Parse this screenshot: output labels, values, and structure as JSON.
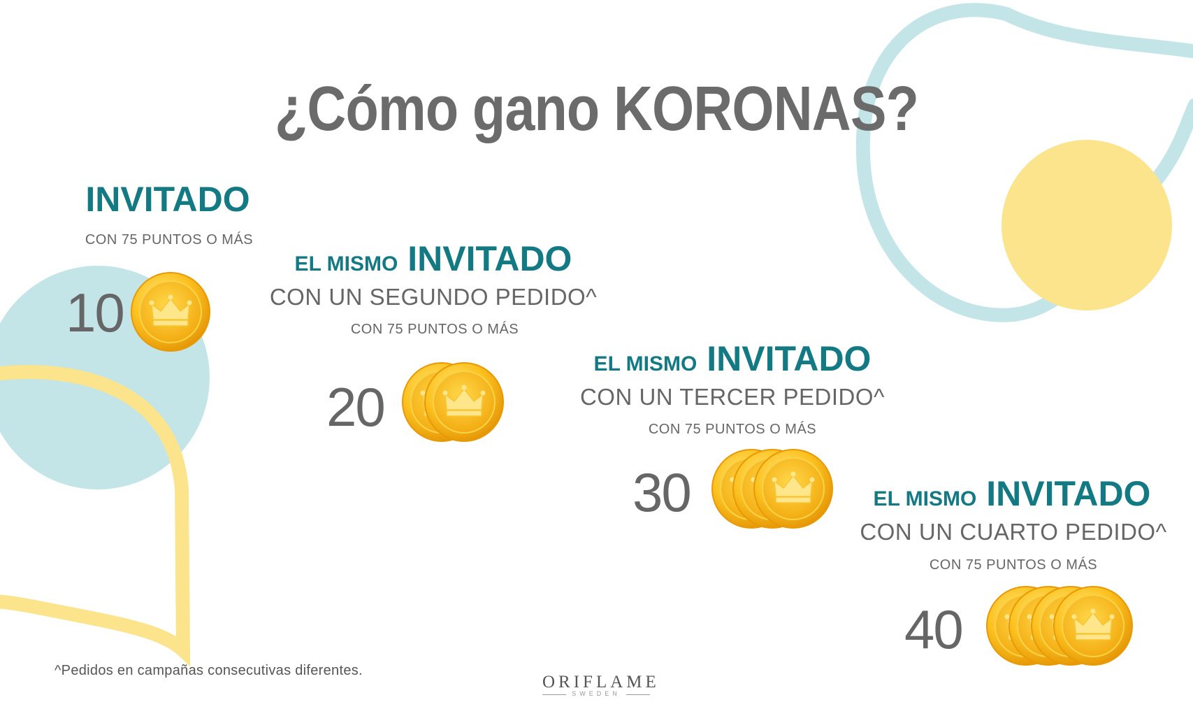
{
  "title": "¿Cómo gano KORONAS?",
  "colors": {
    "teal": "#137983",
    "grey_text": "#666666",
    "light_teal": "#c3e5e7",
    "light_yellow": "#fbe48c",
    "coin_gold": "#f7b718"
  },
  "tiers": [
    {
      "heading": "INVITADO",
      "detail": "",
      "points": "CON 75 PUNTOS O MÁS",
      "amount": "10",
      "coin_count": 1
    },
    {
      "heading_prefix": "EL MISMO",
      "heading": "INVITADO",
      "detail": "CON UN SEGUNDO PEDIDO^",
      "points": "CON 75 PUNTOS O MÁS",
      "amount": "20",
      "coin_count": 2
    },
    {
      "heading_prefix": "EL MISMO",
      "heading": "INVITADO",
      "detail": "CON UN TERCER PEDIDO^",
      "points": "CON 75 PUNTOS O MÁS",
      "amount": "30",
      "coin_count": 3
    },
    {
      "heading_prefix": "EL MISMO",
      "heading": "INVITADO",
      "detail": "CON UN CUARTO PEDIDO^",
      "points": "CON 75 PUNTOS O MÁS",
      "amount": "40",
      "coin_count": 4
    }
  ],
  "footnote": "^Pedidos en campañas consecutivas diferentes.",
  "brand": {
    "name": "ORIFLAME",
    "tagline": "SWEDEN"
  },
  "icons": {
    "coin": "crown-coin-icon"
  }
}
